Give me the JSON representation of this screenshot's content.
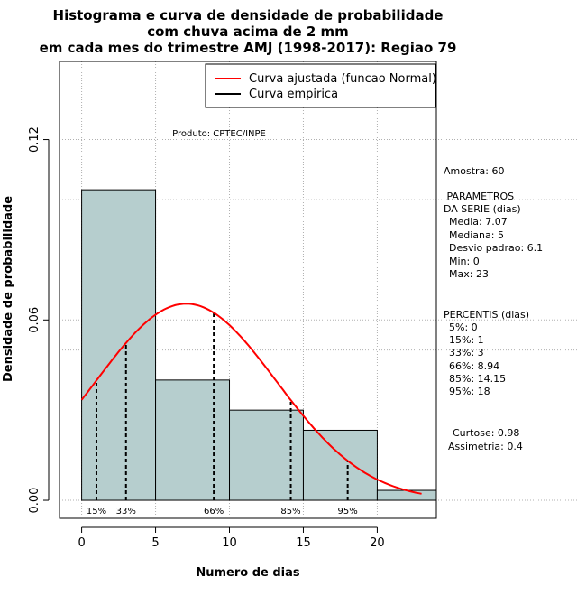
{
  "chart_data": {
    "type": "bar",
    "title": [
      "Histograma e curva de densidade de probabilidade",
      "com chuva acima de 2 mm",
      "em cada mes do trimestre AMJ (1998-2017): Regiao 79"
    ],
    "xlabel": "Numero de dias",
    "ylabel": "Densidade de probabilidade",
    "xlim": [
      -1.5,
      24
    ],
    "ylim": [
      -0.006,
      0.146
    ],
    "xticks": [
      0,
      5,
      10,
      15,
      20
    ],
    "yticks": [
      0.0,
      0.06,
      0.12
    ],
    "ytick_labels": [
      "0.00",
      "0.06",
      "0.12"
    ],
    "bins": [
      {
        "from": 0,
        "to": 5,
        "density": 0.1033
      },
      {
        "from": 5,
        "to": 10,
        "density": 0.04
      },
      {
        "from": 10,
        "to": 15,
        "density": 0.03
      },
      {
        "from": 15,
        "to": 20,
        "density": 0.0233
      },
      {
        "from": 20,
        "to": 25,
        "density": 0.0033
      }
    ],
    "bar_color": "#b6cece",
    "normal_fit": {
      "mean": 7.07,
      "sd": 6.1,
      "x_range": [
        0,
        23
      ],
      "color": "#ff0000"
    },
    "percentile_markers": [
      {
        "label": "15%",
        "x": 1
      },
      {
        "label": "33%",
        "x": 3
      },
      {
        "label": "66%",
        "x": 8.94
      },
      {
        "label": "85%",
        "x": 14.15
      },
      {
        "label": "95%",
        "x": 18
      }
    ],
    "legend": {
      "position": "top-right",
      "entries": [
        {
          "label": "Curva ajustada (funcao Normal)",
          "color": "#ff0000"
        },
        {
          "label": "Curva empirica",
          "color": "#000000"
        }
      ]
    },
    "annotation": "Produto: CPTEC/INPE",
    "hgrid_extra": [
      0.1,
      0.05
    ],
    "grid": true
  },
  "side_panel": {
    "sample": "Amostra: 60",
    "params_title": [
      " PARAMETROS",
      "DA SERIE (dias)"
    ],
    "params": [
      "Media: 7.07",
      "Mediana: 5",
      "Desvio padrao: 6.1",
      "Min: 0",
      "Max: 23"
    ],
    "percentiles_title": "PERCENTIS (dias)",
    "percentiles": [
      "5%: 0",
      "15%: 1",
      "33%: 3",
      "66%: 8.94",
      "85%: 14.15",
      "95%: 18"
    ],
    "shape": [
      "Curtose: 0.98",
      "Assimetria: 0.4"
    ]
  }
}
